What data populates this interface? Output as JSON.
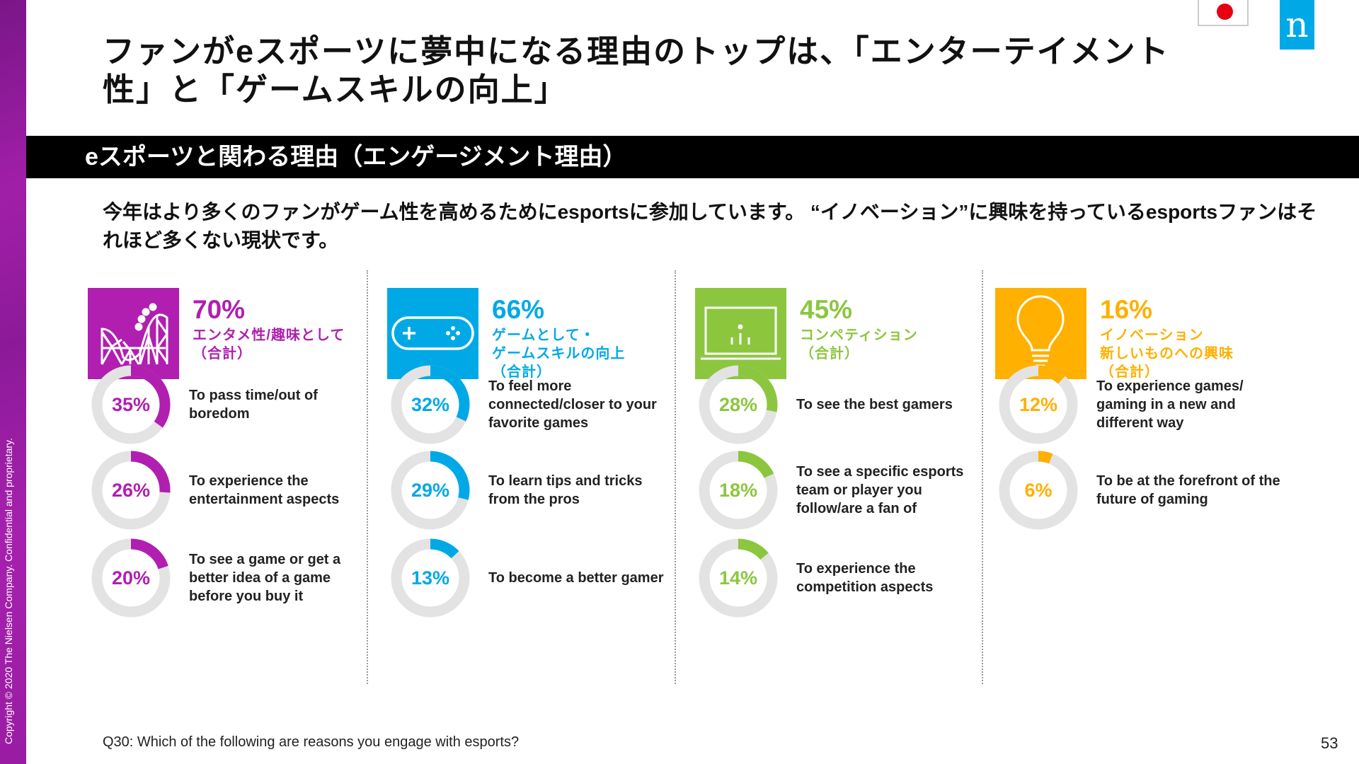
{
  "copyright": "Copyright © 2020 The Nielsen Company. Confidential and proprietary.",
  "logo": "n",
  "title": "ファンがeスポーツに夢中になる理由のトップは、「エンターテイメント性」と「ゲームスキルの向上」",
  "section_heading": "eスポーツと関わる理由（エンゲージメント理由）",
  "subtitle": "今年はより多くのファンがゲーム性を高めるためにesportsに参加しています。 “イノベーション”に興味を持っているesportsファンはそれほど多くない現状です。",
  "columns": [
    {
      "icon": "roller-coaster-icon",
      "color": "#b01fb0",
      "total": "70%",
      "total_value": 70,
      "category": [
        "エンタメ性/趣味として",
        "（合計）"
      ],
      "items": [
        {
          "pct": "35%",
          "value": 35,
          "label": "To pass time/out of boredom"
        },
        {
          "pct": "26%",
          "value": 26,
          "label": "To experience the entertainment aspects"
        },
        {
          "pct": "20%",
          "value": 20,
          "label": "To see a game or get a better idea of a game before you buy it"
        }
      ]
    },
    {
      "icon": "game-controller-icon",
      "color": "#00a9e6",
      "total": "66%",
      "total_value": 66,
      "category": [
        "ゲームとして・",
        "ゲームスキルの向上",
        "（合計）"
      ],
      "items": [
        {
          "pct": "32%",
          "value": 32,
          "label": "To feel more connected/closer to your favorite games"
        },
        {
          "pct": "29%",
          "value": 29,
          "label": "To learn tips and tricks from the pros"
        },
        {
          "pct": "13%",
          "value": 13,
          "label": "To become a better gamer"
        }
      ]
    },
    {
      "icon": "monitor-chart-icon",
      "color": "#8cc63f",
      "total": "45%",
      "total_value": 45,
      "category": [
        "コンペティション",
        "（合計）"
      ],
      "items": [
        {
          "pct": "28%",
          "value": 28,
          "label": "To see the best gamers"
        },
        {
          "pct": "18%",
          "value": 18,
          "label": "To see a specific esports team or player you follow/are a fan of"
        },
        {
          "pct": "14%",
          "value": 14,
          "label": "To experience the competition aspects"
        }
      ]
    },
    {
      "icon": "lightbulb-icon",
      "color": "#ffb000",
      "total": "16%",
      "total_value": 16,
      "category": [
        "イノベーション",
        "新しいものへの興味",
        "（合計）"
      ],
      "items": [
        {
          "pct": "12%",
          "value": 12,
          "label": "To experience games/ gaming in a new and different way"
        },
        {
          "pct": "6%",
          "value": 6,
          "label": "To be at the forefront of the future of gaming"
        }
      ]
    }
  ],
  "footnote": "Q30: Which of the following are reasons you engage with esports?",
  "page_number": "53"
}
